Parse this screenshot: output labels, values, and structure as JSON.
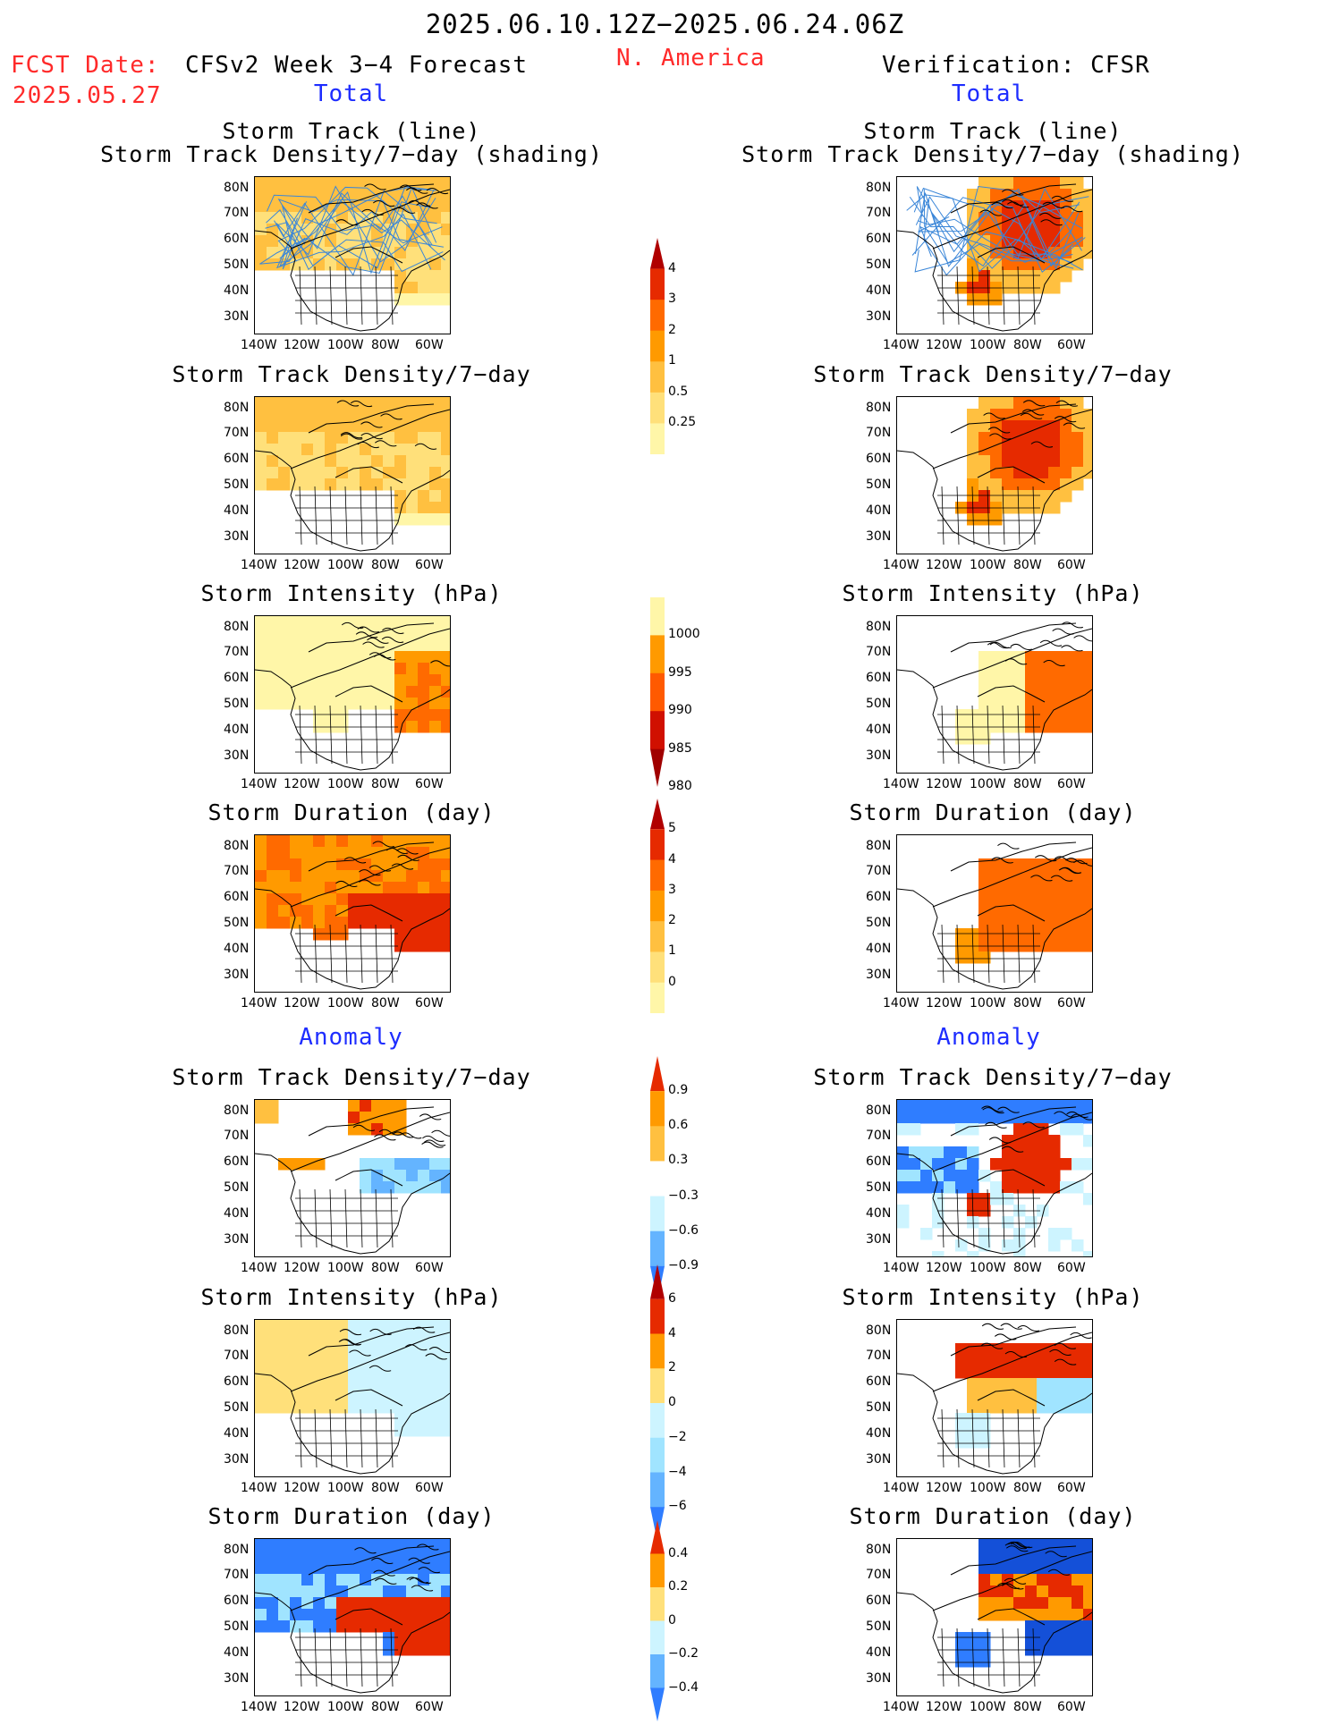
{
  "header": {
    "period": "2025.06.10.12Z−2025.06.24.06Z",
    "fcst_label": "FCST Date:",
    "fcst_date": "2025.05.27",
    "forecast_title": "CFSv2 Week 3−4 Forecast",
    "region": "N. America",
    "verification": "Verification: CFSR",
    "total_left": "Total",
    "total_right": "Total",
    "anomaly_left": "Anomaly",
    "anomaly_right": "Anomaly"
  },
  "panels": {
    "p1_title_a": "Storm Track (line)",
    "p1_title_b": "Storm Track Density/7−day (shading)",
    "density": "Storm Track Density/7−day",
    "intensity": "Storm Intensity (hPa)",
    "duration": "Storm Duration (day)"
  },
  "axes": {
    "lat": [
      "80N",
      "70N",
      "60N",
      "50N",
      "40N",
      "30N"
    ],
    "lon": [
      "140W",
      "120W",
      "100W",
      "80W",
      "60W"
    ]
  },
  "colorbars": {
    "density_total": [
      "4",
      "3",
      "2",
      "1",
      "0.5",
      "0.25"
    ],
    "intensity_total": [
      "1000",
      "995",
      "990",
      "985",
      "980"
    ],
    "duration_total": [
      "5",
      "4",
      "3",
      "2",
      "1",
      "0"
    ],
    "density_anom": [
      "0.9",
      "0.6",
      "0.3",
      "−0.3",
      "−0.6",
      "−0.9"
    ],
    "intensity_anom": [
      "6",
      "4",
      "2",
      "0",
      "−2",
      "−4",
      "−6"
    ],
    "duration_anom": [
      "0.4",
      "0.2",
      "0",
      "−0.2",
      "−0.4"
    ]
  },
  "colors": {
    "warm": [
      "#fff6a8",
      "#ffe07a",
      "#ffc040",
      "#ff9a00",
      "#ff6a00",
      "#e62a00",
      "#b00000"
    ],
    "cool": [
      "#cdf4ff",
      "#a0e4ff",
      "#64b4ff",
      "#2f7dff",
      "#1450d8"
    ],
    "track_line": "#3a86d8"
  }
}
